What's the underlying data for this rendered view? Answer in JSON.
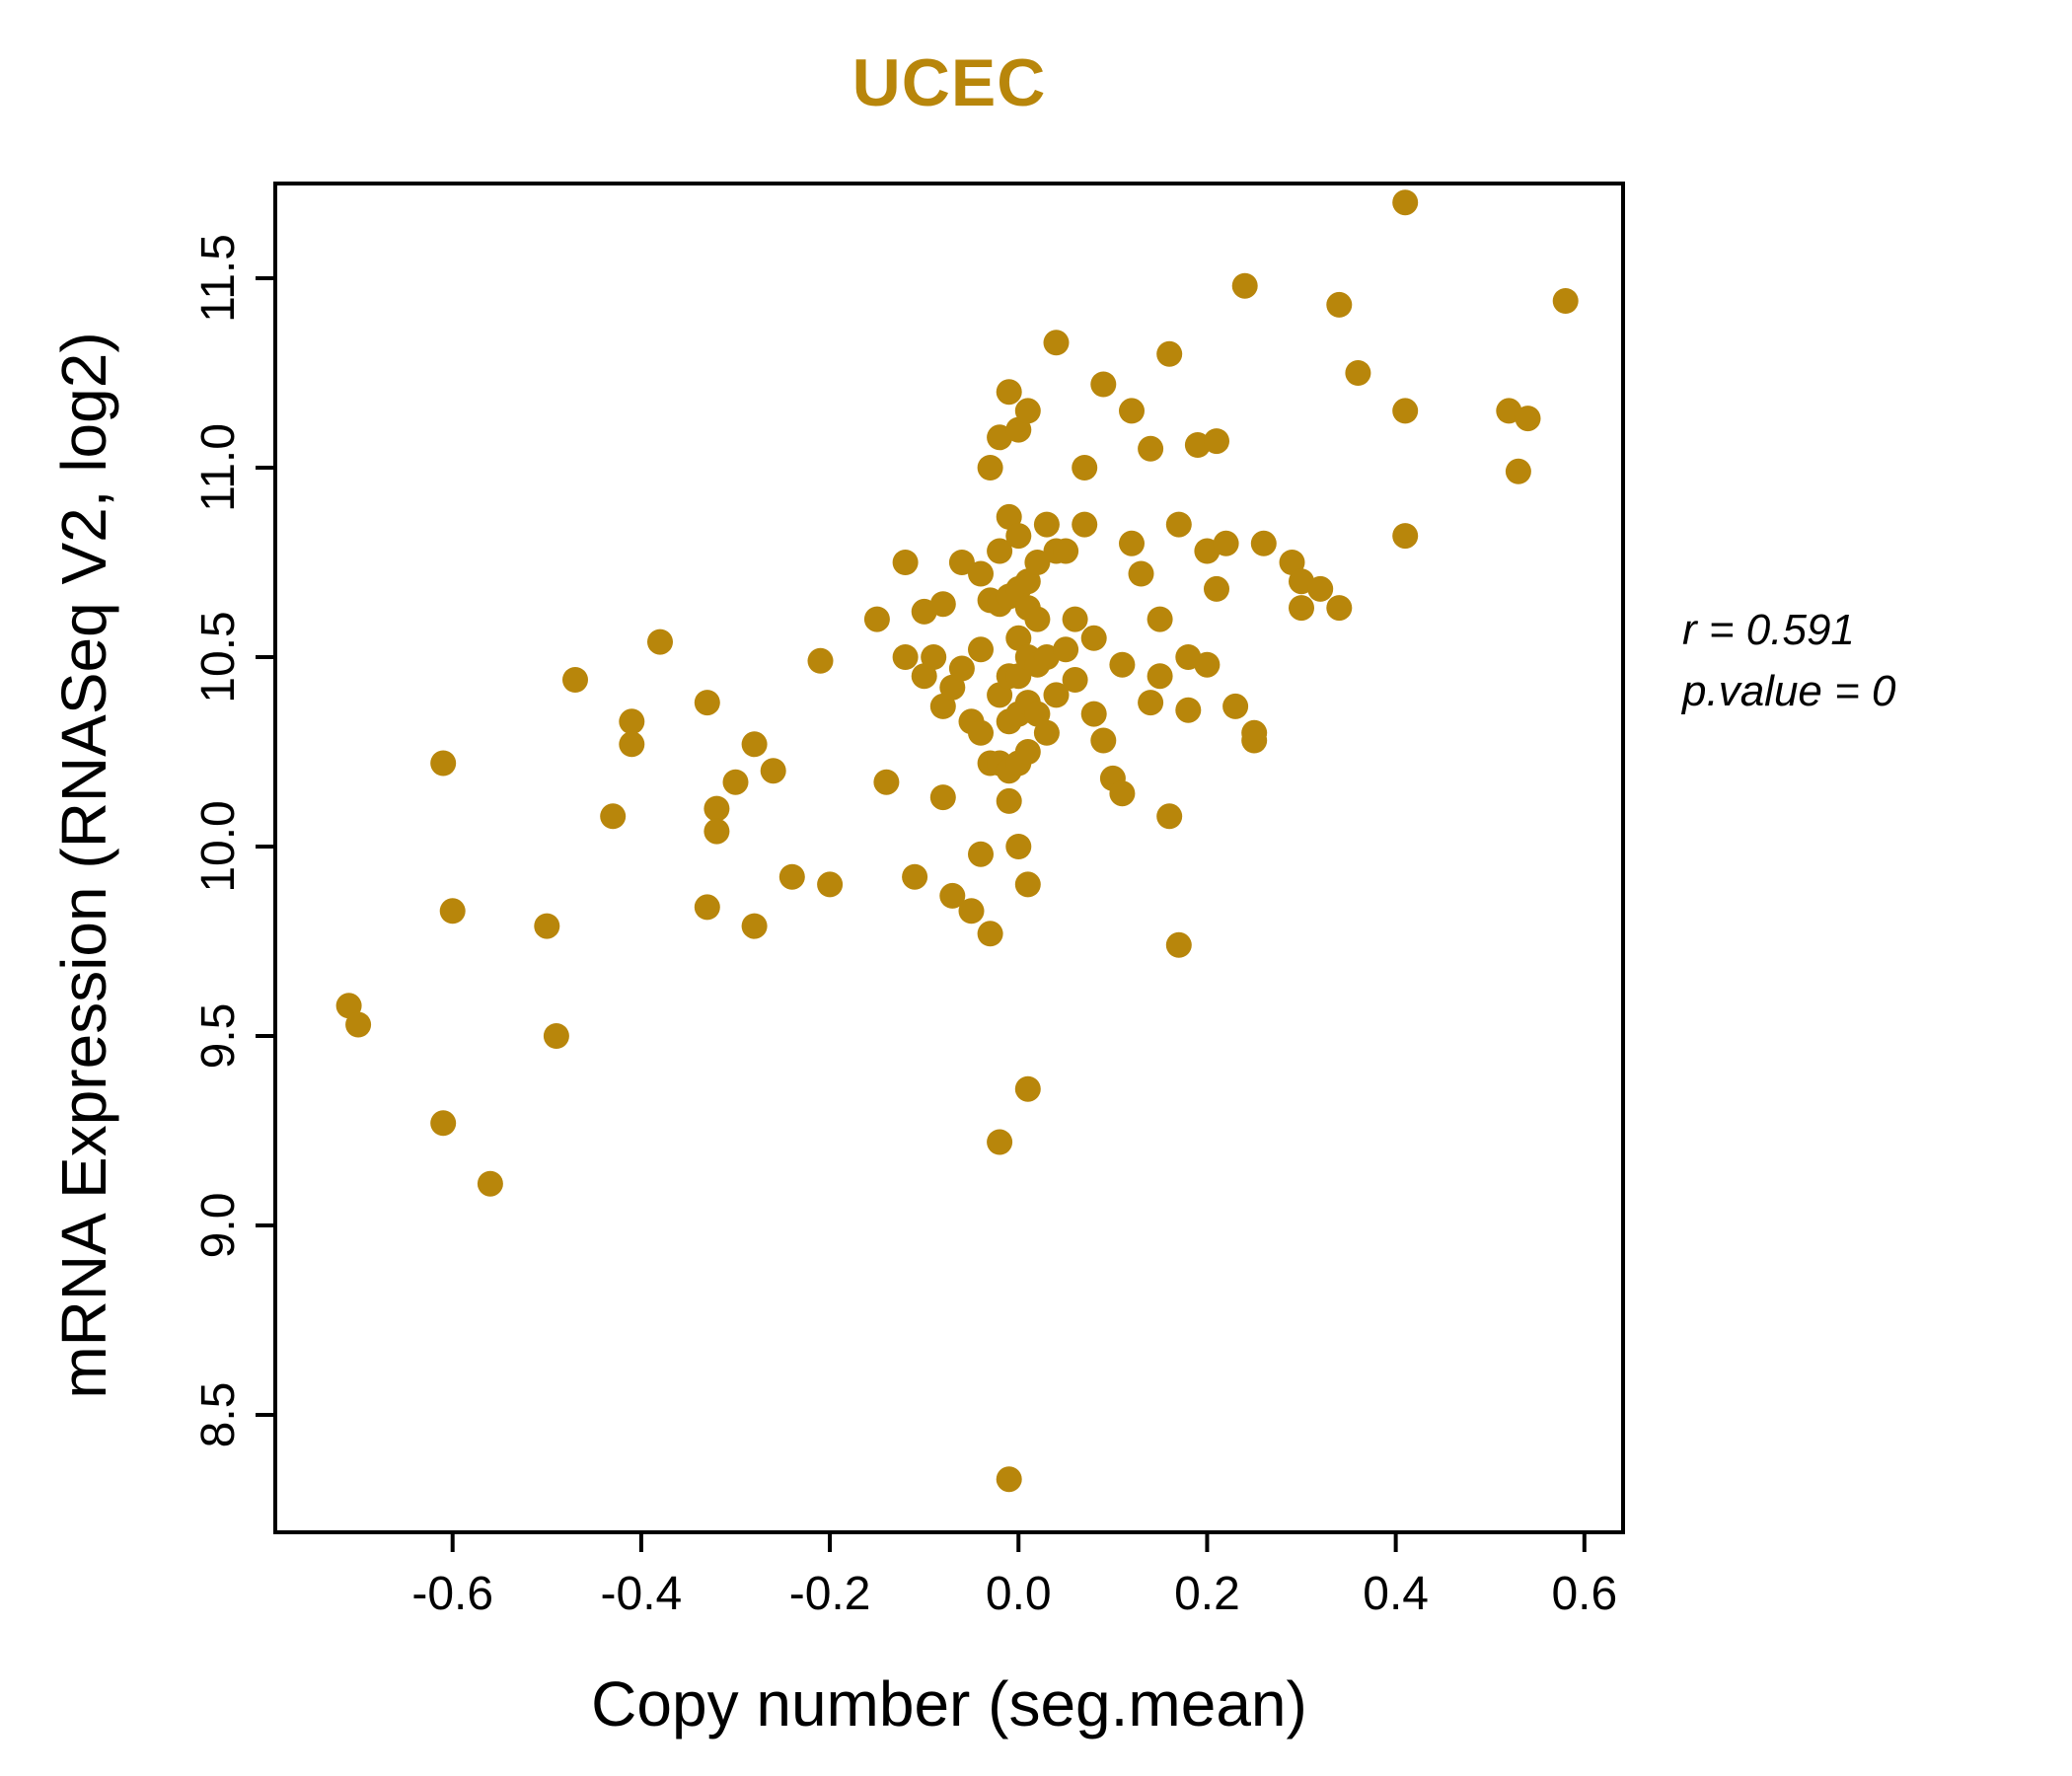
{
  "title": "UCEC",
  "accent_color": "#B8860B",
  "axis_color": "#000000",
  "annotation": {
    "line1": "r = 0.591",
    "line2": "p.value = 0"
  },
  "chart_data": {
    "type": "scatter",
    "title": "UCEC",
    "xlabel": "Copy number (seg.mean)",
    "ylabel": "mRNA Expression (RNASeq V2, log2)",
    "xlim": [
      -0.788,
      0.641
    ],
    "ylim": [
      8.19,
      11.75
    ],
    "x_ticks": [
      -0.6,
      -0.4,
      -0.2,
      0.0,
      0.2,
      0.4,
      0.6
    ],
    "x_tick_labels": [
      "-0.6",
      "-0.4",
      "-0.2",
      "0.0",
      "0.2",
      "0.4",
      "0.6"
    ],
    "y_ticks": [
      8.5,
      9.0,
      9.5,
      10.0,
      10.5,
      11.0,
      11.5
    ],
    "y_tick_labels": [
      "8.5",
      "9.0",
      "9.5",
      "10.0",
      "10.5",
      "11.0",
      "11.5"
    ],
    "grid": false,
    "point_color": "#B8860B",
    "point_radius": 13,
    "stats": {
      "r": 0.591,
      "p_value": 0
    },
    "points": [
      [
        -0.71,
        9.58
      ],
      [
        -0.7,
        9.53
      ],
      [
        -0.61,
        10.22
      ],
      [
        -0.61,
        9.27
      ],
      [
        -0.6,
        9.83
      ],
      [
        -0.56,
        9.11
      ],
      [
        -0.5,
        9.79
      ],
      [
        -0.49,
        9.5
      ],
      [
        -0.47,
        10.44
      ],
      [
        -0.43,
        10.08
      ],
      [
        -0.41,
        10.33
      ],
      [
        -0.41,
        10.27
      ],
      [
        -0.38,
        10.54
      ],
      [
        -0.33,
        10.38
      ],
      [
        -0.33,
        9.84
      ],
      [
        -0.32,
        10.1
      ],
      [
        -0.32,
        10.04
      ],
      [
        -0.3,
        10.17
      ],
      [
        -0.28,
        10.27
      ],
      [
        -0.28,
        9.79
      ],
      [
        -0.26,
        10.2
      ],
      [
        -0.24,
        9.92
      ],
      [
        -0.21,
        10.49
      ],
      [
        -0.2,
        9.9
      ],
      [
        -0.15,
        10.6
      ],
      [
        -0.14,
        10.17
      ],
      [
        -0.12,
        10.75
      ],
      [
        -0.12,
        10.5
      ],
      [
        -0.11,
        9.92
      ],
      [
        -0.1,
        10.62
      ],
      [
        -0.1,
        10.45
      ],
      [
        -0.09,
        10.5
      ],
      [
        -0.08,
        10.64
      ],
      [
        -0.08,
        10.37
      ],
      [
        -0.08,
        10.13
      ],
      [
        -0.07,
        10.42
      ],
      [
        -0.07,
        9.87
      ],
      [
        -0.06,
        10.75
      ],
      [
        -0.06,
        10.47
      ],
      [
        -0.05,
        10.33
      ],
      [
        -0.05,
        9.83
      ],
      [
        -0.04,
        10.72
      ],
      [
        -0.04,
        10.52
      ],
      [
        -0.04,
        10.3
      ],
      [
        -0.04,
        9.98
      ],
      [
        -0.03,
        11.0
      ],
      [
        -0.03,
        10.65
      ],
      [
        -0.03,
        10.22
      ],
      [
        -0.03,
        9.77
      ],
      [
        -0.02,
        11.08
      ],
      [
        -0.02,
        10.78
      ],
      [
        -0.02,
        10.64
      ],
      [
        -0.02,
        10.4
      ],
      [
        -0.02,
        10.22
      ],
      [
        -0.02,
        9.22
      ],
      [
        -0.01,
        11.2
      ],
      [
        -0.01,
        10.87
      ],
      [
        -0.01,
        10.66
      ],
      [
        -0.01,
        10.45
      ],
      [
        -0.01,
        10.33
      ],
      [
        -0.01,
        10.2
      ],
      [
        -0.01,
        10.12
      ],
      [
        -0.01,
        8.33
      ],
      [
        0.0,
        11.1
      ],
      [
        0.0,
        10.82
      ],
      [
        0.0,
        10.68
      ],
      [
        0.0,
        10.55
      ],
      [
        0.0,
        10.45
      ],
      [
        0.0,
        10.35
      ],
      [
        0.0,
        10.22
      ],
      [
        0.0,
        10.0
      ],
      [
        0.01,
        11.15
      ],
      [
        0.01,
        10.7
      ],
      [
        0.01,
        10.63
      ],
      [
        0.01,
        10.5
      ],
      [
        0.01,
        10.38
      ],
      [
        0.01,
        10.25
      ],
      [
        0.01,
        9.9
      ],
      [
        0.01,
        9.36
      ],
      [
        0.02,
        10.75
      ],
      [
        0.02,
        10.6
      ],
      [
        0.02,
        10.48
      ],
      [
        0.02,
        10.35
      ],
      [
        0.03,
        10.85
      ],
      [
        0.03,
        10.5
      ],
      [
        0.03,
        10.3
      ],
      [
        0.04,
        11.33
      ],
      [
        0.04,
        10.78
      ],
      [
        0.04,
        10.4
      ],
      [
        0.05,
        10.78
      ],
      [
        0.05,
        10.52
      ],
      [
        0.06,
        10.6
      ],
      [
        0.06,
        10.44
      ],
      [
        0.07,
        11.0
      ],
      [
        0.07,
        10.85
      ],
      [
        0.08,
        10.55
      ],
      [
        0.08,
        10.35
      ],
      [
        0.09,
        11.22
      ],
      [
        0.09,
        10.28
      ],
      [
        0.1,
        10.18
      ],
      [
        0.11,
        10.48
      ],
      [
        0.11,
        10.14
      ],
      [
        0.12,
        11.15
      ],
      [
        0.12,
        10.8
      ],
      [
        0.13,
        10.72
      ],
      [
        0.14,
        11.05
      ],
      [
        0.14,
        10.38
      ],
      [
        0.15,
        10.6
      ],
      [
        0.15,
        10.45
      ],
      [
        0.16,
        11.3
      ],
      [
        0.16,
        10.08
      ],
      [
        0.17,
        10.85
      ],
      [
        0.17,
        9.74
      ],
      [
        0.18,
        10.5
      ],
      [
        0.18,
        10.36
      ],
      [
        0.19,
        11.06
      ],
      [
        0.2,
        10.78
      ],
      [
        0.2,
        10.48
      ],
      [
        0.21,
        11.07
      ],
      [
        0.21,
        10.68
      ],
      [
        0.22,
        10.8
      ],
      [
        0.23,
        10.37
      ],
      [
        0.24,
        11.48
      ],
      [
        0.25,
        10.3
      ],
      [
        0.25,
        10.28
      ],
      [
        0.26,
        10.8
      ],
      [
        0.29,
        10.75
      ],
      [
        0.3,
        10.7
      ],
      [
        0.3,
        10.63
      ],
      [
        0.32,
        10.68
      ],
      [
        0.34,
        11.43
      ],
      [
        0.34,
        10.63
      ],
      [
        0.36,
        11.25
      ],
      [
        0.41,
        11.7
      ],
      [
        0.41,
        11.15
      ],
      [
        0.41,
        10.82
      ],
      [
        0.52,
        11.15
      ],
      [
        0.53,
        10.99
      ],
      [
        0.54,
        11.13
      ],
      [
        0.58,
        11.44
      ]
    ]
  }
}
